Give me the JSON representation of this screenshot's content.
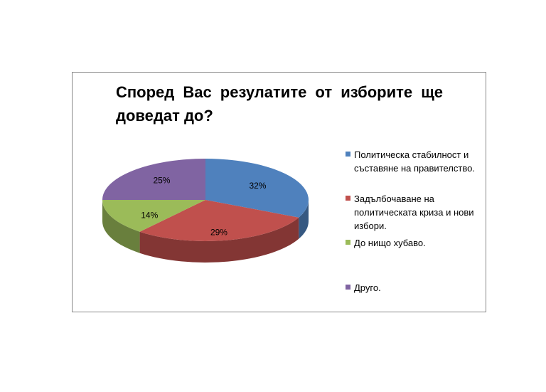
{
  "chart_data": {
    "type": "pie",
    "title": "Според Вас резулатите от изборите ще доведат до?",
    "categories": [
      "Политическа стабилност и съставяне на правителство.",
      "Задълбочаване на политическата криза и нови избори.",
      "До нищо хубаво.",
      "Друго."
    ],
    "values": [
      32,
      29,
      14,
      25
    ],
    "value_labels": [
      "32%",
      "29%",
      "14%",
      "25%"
    ],
    "colors": [
      "#4f81bd",
      "#c0504d",
      "#9bbb59",
      "#8064a2"
    ]
  }
}
